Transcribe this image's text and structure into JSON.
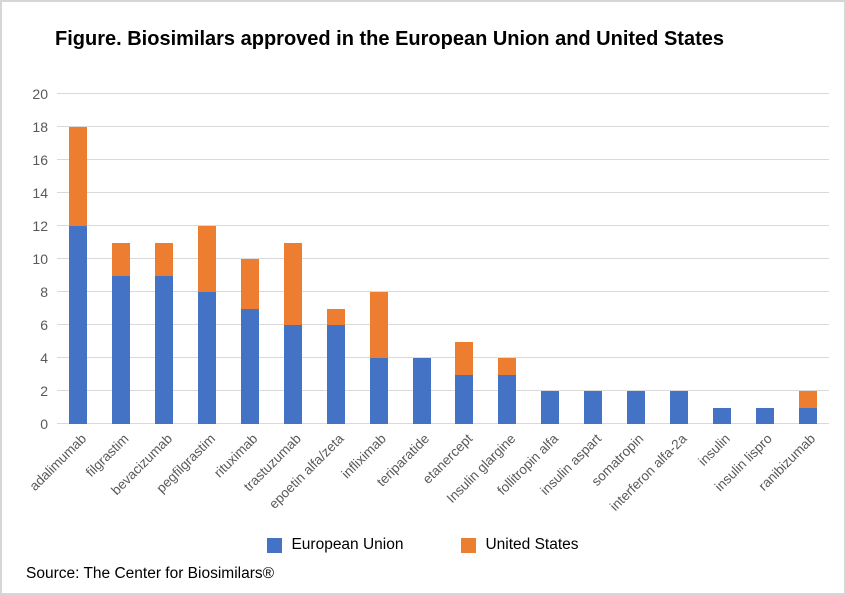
{
  "title": "Figure. Biosimilars approved in the European Union and United States",
  "source_note": "Source: The Center for Biosimilars®",
  "colors": {
    "eu_bar": "#4472C4",
    "us_bar": "#ED7D31",
    "gridline": "#D9D9D9",
    "axis_text": "#595959",
    "text": "#000000"
  },
  "chart_data": {
    "type": "bar",
    "stacked": true,
    "title": "Figure. Biosimilars approved in the European Union and United States",
    "categories": [
      "adalimumab",
      "filgrastim",
      "bevacizumab",
      "pegfilgrastim",
      "rituximab",
      "trastuzumab",
      "epoetin alfa/zeta",
      "infliximab",
      "teriparatide",
      "etanercept",
      "Insulin glargine",
      "follitropin alfa",
      "insulin aspart",
      "somatropin",
      "interferon alfa-2a",
      "insulin",
      "insulin lispro",
      "ranibizumab"
    ],
    "series": [
      {
        "name": "European Union",
        "color": "#4472C4",
        "values": [
          12,
          9,
          9,
          8,
          7,
          6,
          6,
          4,
          4,
          3,
          3,
          2,
          2,
          2,
          2,
          1,
          1,
          1
        ]
      },
      {
        "name": "United States",
        "color": "#ED7D31",
        "values": [
          6,
          2,
          2,
          4,
          3,
          5,
          1,
          4,
          0,
          2,
          1,
          0,
          0,
          0,
          0,
          0,
          0,
          1
        ]
      }
    ],
    "totals": [
      18,
      11,
      11,
      12,
      10,
      11,
      7,
      8,
      4,
      5,
      4,
      2,
      2,
      2,
      2,
      1,
      1,
      2
    ],
    "xlabel": "",
    "ylabel": "",
    "ylim": [
      0,
      20
    ],
    "yticks": [
      0,
      2,
      4,
      6,
      8,
      10,
      12,
      14,
      16,
      18,
      20
    ],
    "grid": true,
    "legend_position": "bottom",
    "x_label_rotation": -45
  }
}
